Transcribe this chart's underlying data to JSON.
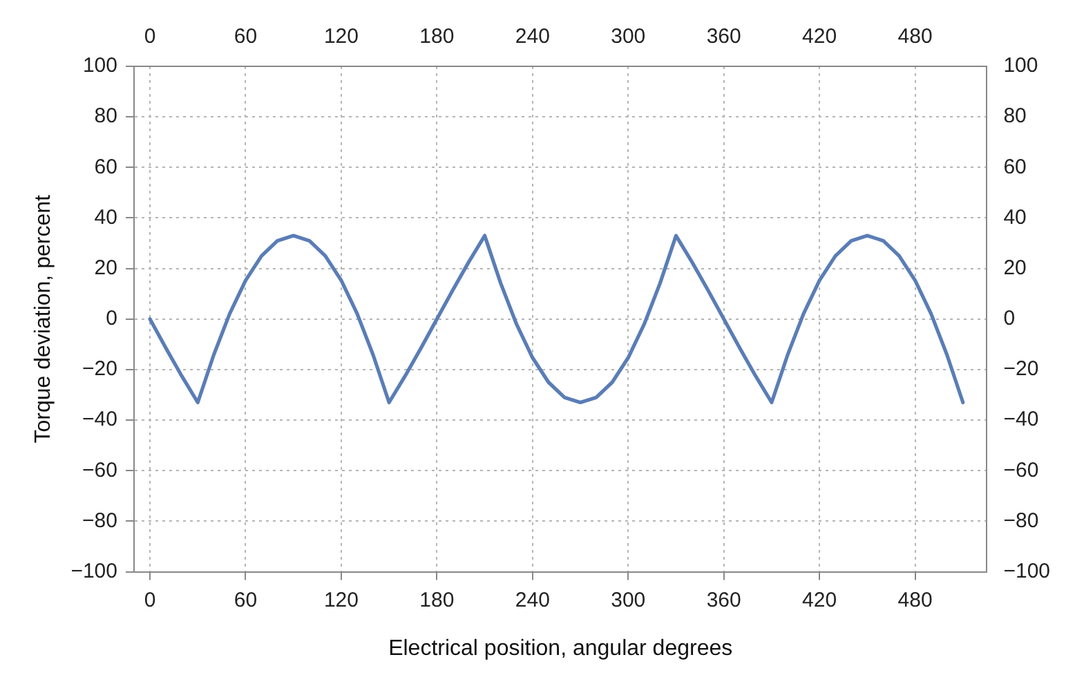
{
  "chart_data": {
    "type": "line",
    "xlabel": "Electrical position, angular degrees",
    "ylabel": "Torque deviation, percent",
    "x": [
      0,
      10,
      20,
      30,
      40,
      50,
      60,
      70,
      80,
      90,
      100,
      110,
      120,
      130,
      140,
      150,
      160,
      170,
      180,
      190,
      200,
      210,
      220,
      230,
      240,
      250,
      260,
      270,
      280,
      290,
      300,
      310,
      320,
      330,
      340,
      350,
      360,
      370,
      380,
      390,
      400,
      410,
      420,
      430,
      440,
      450,
      460,
      470,
      480,
      490,
      500,
      510
    ],
    "series": [
      {
        "color": "#5a7db6",
        "values": [
          0,
          -11.5,
          -22.6,
          -33,
          -14.2,
          2.1,
          15.3,
          25,
          31,
          33,
          31,
          25,
          15.3,
          2.1,
          -14.2,
          -33,
          -22.6,
          -11.5,
          0,
          11.5,
          22.6,
          33,
          14.2,
          -2.1,
          -15.3,
          -25,
          -31,
          -33,
          -31,
          -25,
          -15.3,
          -2.1,
          14.2,
          33,
          22.6,
          11.5,
          0,
          -11.5,
          -22.6,
          -33,
          -14.2,
          2.1,
          15.3,
          25,
          31,
          33,
          31,
          25,
          15.3,
          2.1,
          -14.2,
          -33
        ]
      }
    ],
    "xlim": [
      -10,
      525
    ],
    "xticks": [
      0,
      60,
      120,
      180,
      240,
      300,
      360,
      420,
      480
    ],
    "x2lim": [
      -10,
      525
    ],
    "x2ticks": [
      0,
      60,
      120,
      180,
      240,
      300,
      360,
      420,
      480
    ],
    "ylim": [
      -100,
      100
    ],
    "yticks": [
      -100,
      -80,
      -60,
      -40,
      -20,
      0,
      20,
      40,
      60,
      80,
      100
    ],
    "y2lim": [
      -100,
      100
    ],
    "y2ticks": [
      -100,
      -80,
      -60,
      -40,
      -20,
      0,
      20,
      40,
      60,
      80,
      100
    ],
    "grid": true,
    "legend": false,
    "marker": "none",
    "line_style": "solid"
  }
}
